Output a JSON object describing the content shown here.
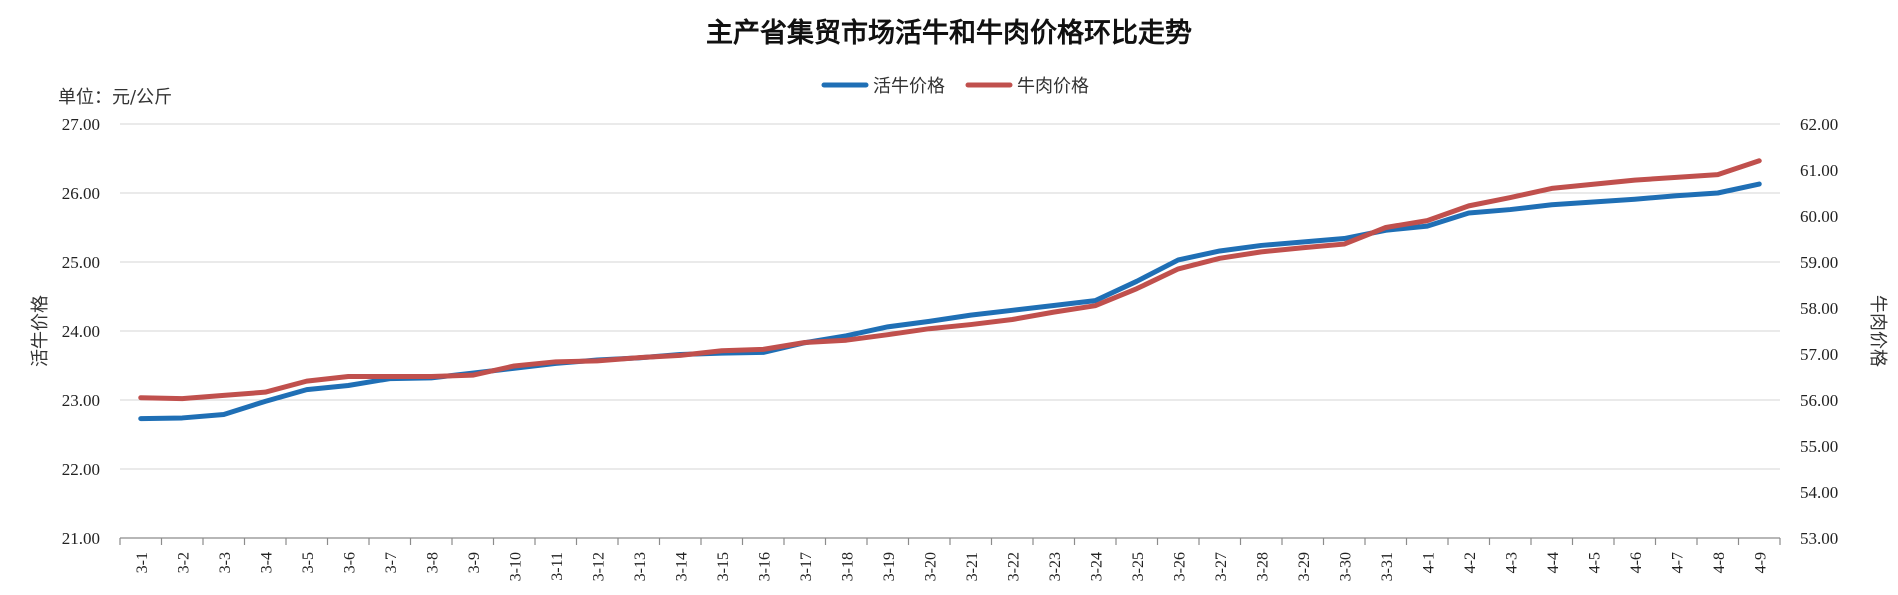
{
  "chart_data": {
    "type": "line",
    "title": "主产省集贸市场活牛和牛肉价格环比走势",
    "unit_label": "单位：元/公斤",
    "left_axis_title": "活牛价格",
    "right_axis_title": "牛肉价格",
    "legend_position": "top-center",
    "grid": true,
    "categories": [
      "3-1",
      "3-2",
      "3-3",
      "3-4",
      "3-5",
      "3-6",
      "3-7",
      "3-8",
      "3-9",
      "3-10",
      "3-11",
      "3-12",
      "3-13",
      "3-14",
      "3-15",
      "3-16",
      "3-17",
      "3-18",
      "3-19",
      "3-20",
      "3-21",
      "3-22",
      "3-23",
      "3-24",
      "3-25",
      "3-26",
      "3-27",
      "3-28",
      "3-29",
      "3-30",
      "3-31",
      "4-1",
      "4-2",
      "4-3",
      "4-4",
      "4-5",
      "4-6",
      "4-7",
      "4-8",
      "4-9"
    ],
    "left_axis": {
      "min": 21,
      "max": 27,
      "step": 1,
      "tick_labels": [
        "21.00",
        "22.00",
        "23.00",
        "24.00",
        "25.00",
        "26.00",
        "27.00"
      ]
    },
    "right_axis": {
      "min": 53,
      "max": 62,
      "step": 1,
      "tick_labels": [
        "53.00",
        "54.00",
        "55.00",
        "56.00",
        "57.00",
        "58.00",
        "59.00",
        "60.00",
        "61.00",
        "62.00"
      ]
    },
    "series": [
      {
        "name": "活牛价格",
        "axis": "left",
        "color": "#1f6fb5",
        "values": [
          22.73,
          22.74,
          22.79,
          22.98,
          23.15,
          23.21,
          23.31,
          23.32,
          23.39,
          23.46,
          23.53,
          23.58,
          23.61,
          23.66,
          23.68,
          23.69,
          23.83,
          23.93,
          24.06,
          24.14,
          24.23,
          24.3,
          24.37,
          24.44,
          24.72,
          25.03,
          25.16,
          25.24,
          25.29,
          25.34,
          25.46,
          25.52,
          25.71,
          25.76,
          25.83,
          25.87,
          25.91,
          25.96,
          26.0,
          26.13
        ]
      },
      {
        "name": "牛肉价格",
        "axis": "right",
        "color": "#c0504d",
        "values": [
          56.05,
          56.03,
          56.1,
          56.17,
          56.41,
          56.51,
          56.51,
          56.51,
          56.54,
          56.74,
          56.83,
          56.85,
          56.92,
          56.97,
          57.07,
          57.1,
          57.25,
          57.3,
          57.42,
          57.55,
          57.64,
          57.75,
          57.91,
          58.05,
          58.42,
          58.85,
          59.08,
          59.22,
          59.31,
          59.39,
          59.75,
          59.9,
          60.22,
          60.4,
          60.6,
          60.69,
          60.78,
          60.84,
          60.9,
          61.2
        ]
      }
    ]
  },
  "colors": {
    "gridline": "#d4d4d4",
    "axis": "#8c8c8c"
  }
}
